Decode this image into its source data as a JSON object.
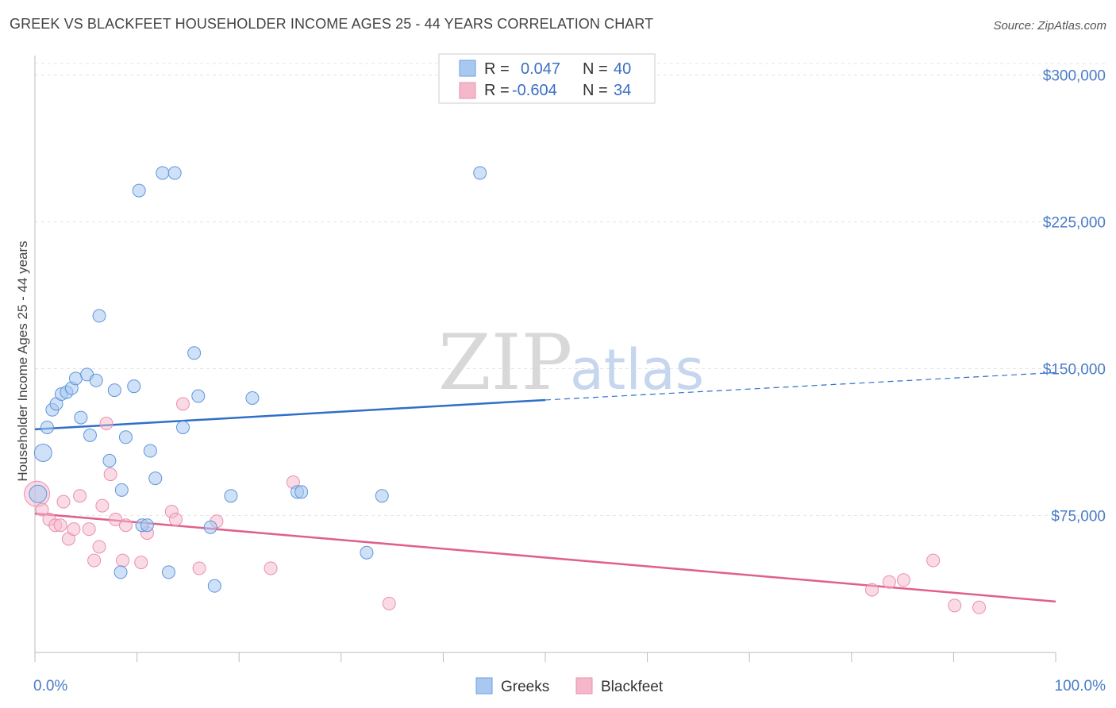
{
  "title": "GREEK VS BLACKFEET HOUSEHOLDER INCOME AGES 25 - 44 YEARS CORRELATION CHART",
  "source": "Source: ZipAtlas.com",
  "watermark": {
    "zip": "ZIP",
    "atlas": "atlas"
  },
  "legend": {
    "rows": [
      {
        "r_label": "R =",
        "r_value": "0.047",
        "n_label": "N =",
        "n_value": "40",
        "color": "#a8c8f0"
      },
      {
        "r_label": "R =",
        "r_value": "-0.604",
        "n_label": "N =",
        "n_value": "34",
        "color": "#f5b8cb"
      }
    ]
  },
  "bottom_legend": [
    "Greeks",
    "Blackfeet"
  ],
  "chart_data": {
    "type": "scatter",
    "ylabel": "Householder Income Ages 25 - 44 years",
    "x_tick_labels": [
      "0.0%",
      "100.0%"
    ],
    "y_tick_labels": [
      "$75,000",
      "$150,000",
      "$225,000",
      "$300,000"
    ],
    "y_ticks": [
      75000,
      150000,
      225000,
      300000
    ],
    "xlim": [
      0,
      100
    ],
    "ylim": [
      5000,
      310000
    ],
    "colors": {
      "greeks": "#a8c8f0",
      "greeks_line": "#2f6fc8",
      "blackfeet": "#f5b8cb",
      "blackfeet_line": "#e0608a"
    },
    "series": [
      {
        "name": "Greeks",
        "points": [
          [
            0.3,
            86000
          ],
          [
            0.8,
            107000
          ],
          [
            1.2,
            120000
          ],
          [
            1.7,
            129000
          ],
          [
            2.1,
            132000
          ],
          [
            2.6,
            137000
          ],
          [
            3.1,
            138000
          ],
          [
            3.6,
            140000
          ],
          [
            4.0,
            145000
          ],
          [
            4.5,
            125000
          ],
          [
            5.1,
            147000
          ],
          [
            5.4,
            116000
          ],
          [
            6.0,
            144000
          ],
          [
            6.3,
            177000
          ],
          [
            7.3,
            103000
          ],
          [
            7.8,
            139000
          ],
          [
            8.5,
            88000
          ],
          [
            8.4,
            46000
          ],
          [
            8.9,
            115000
          ],
          [
            9.7,
            141000
          ],
          [
            10.2,
            241000
          ],
          [
            10.5,
            70000
          ],
          [
            11.0,
            70000
          ],
          [
            11.3,
            108000
          ],
          [
            11.8,
            94000
          ],
          [
            12.5,
            250000
          ],
          [
            13.1,
            46000
          ],
          [
            13.7,
            250000
          ],
          [
            14.5,
            120000
          ],
          [
            15.6,
            158000
          ],
          [
            16.0,
            136000
          ],
          [
            17.2,
            69000
          ],
          [
            17.6,
            39000
          ],
          [
            19.2,
            85000
          ],
          [
            21.3,
            135000
          ],
          [
            25.7,
            87000
          ],
          [
            26.1,
            87000
          ],
          [
            32.5,
            56000
          ],
          [
            34.0,
            85000
          ],
          [
            43.6,
            250000
          ]
        ],
        "trend": {
          "x": [
            0,
            50,
            100
          ],
          "y": [
            119000,
            134000,
            148000
          ],
          "solid_until_x": 50
        }
      },
      {
        "name": "Blackfeet",
        "points": [
          [
            0.2,
            86000
          ],
          [
            0.7,
            78000
          ],
          [
            1.4,
            73000
          ],
          [
            2.0,
            70000
          ],
          [
            2.5,
            70000
          ],
          [
            2.8,
            82000
          ],
          [
            3.3,
            63000
          ],
          [
            3.8,
            68000
          ],
          [
            4.4,
            85000
          ],
          [
            5.3,
            68000
          ],
          [
            5.8,
            52000
          ],
          [
            6.3,
            59000
          ],
          [
            6.6,
            80000
          ],
          [
            7.0,
            122000
          ],
          [
            7.4,
            96000
          ],
          [
            7.9,
            73000
          ],
          [
            8.6,
            52000
          ],
          [
            8.9,
            70000
          ],
          [
            10.4,
            51000
          ],
          [
            11.0,
            66000
          ],
          [
            13.4,
            77000
          ],
          [
            13.8,
            73000
          ],
          [
            14.5,
            132000
          ],
          [
            16.1,
            48000
          ],
          [
            17.8,
            72000
          ],
          [
            23.1,
            48000
          ],
          [
            25.3,
            92000
          ],
          [
            34.7,
            30000
          ],
          [
            82.0,
            37000
          ],
          [
            83.7,
            41000
          ],
          [
            85.1,
            42000
          ],
          [
            88.0,
            52000
          ],
          [
            90.1,
            29000
          ],
          [
            92.5,
            28000
          ]
        ],
        "trend": {
          "x": [
            0,
            100
          ],
          "y": [
            76000,
            31000
          ]
        }
      }
    ]
  }
}
